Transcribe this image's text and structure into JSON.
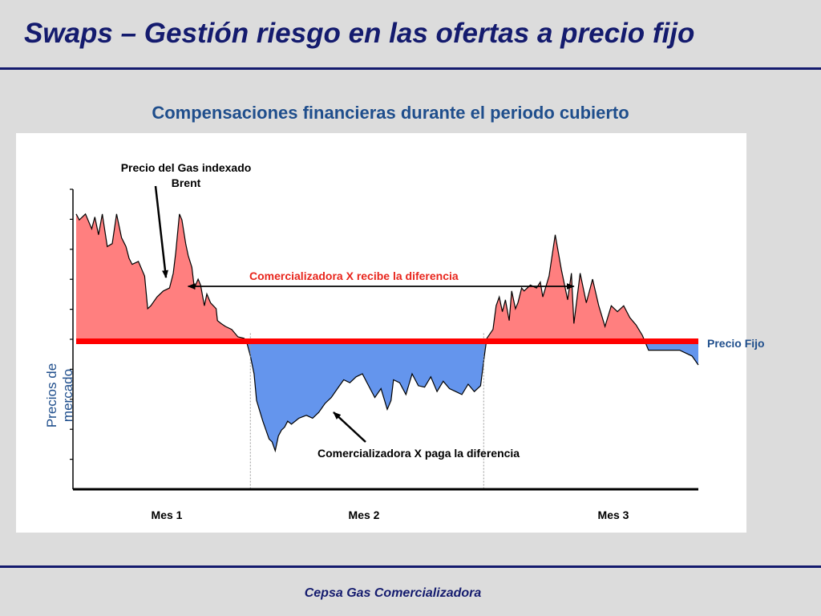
{
  "slide": {
    "title": "Swaps – Gestión riesgo en las ofertas a precio fijo",
    "footer": "Cepsa Gas Comercializadora"
  },
  "chart_data": {
    "type": "area",
    "title": "Compensaciones financieras durante el periodo cubierto",
    "ylabel": "Precios de mercado",
    "xlabel": "",
    "tick_labels": [
      "Mes 1",
      "Mes 2",
      "Mes 3"
    ],
    "fixed_price_label": "Precio Fijo",
    "fixed_price": 50,
    "ylim": [
      0,
      100
    ],
    "xlim": [
      0,
      100
    ],
    "grid": false,
    "period_boundaries": [
      28,
      65.5
    ],
    "series": [
      {
        "name": "Precio del Gas indexado Brent",
        "x": [
          0,
          0.5,
          1.5,
          2.5,
          3,
          3.6,
          4.2,
          5,
          5.8,
          6.5,
          7.3,
          8,
          8.5,
          9,
          10,
          11,
          11.5,
          12,
          13,
          14,
          15,
          15.6,
          16,
          16.6,
          17,
          17.6,
          18,
          18.6,
          19,
          19.6,
          20,
          20.6,
          21,
          21.6,
          22.5,
          22.7,
          23.3,
          24,
          25,
          26,
          27,
          27.5,
          28,
          28.6,
          29,
          30,
          31,
          31.5,
          32,
          32.5,
          33,
          33.5,
          34,
          34.6,
          35.2,
          35.8,
          36.4,
          37,
          38,
          39,
          40,
          41,
          42,
          43,
          44,
          45,
          46,
          47,
          48,
          49,
          50,
          50.6,
          51,
          52,
          53,
          54,
          55,
          56,
          57,
          58,
          59,
          60,
          61,
          62,
          63,
          64,
          65,
          65.6,
          66,
          67,
          67.5,
          68,
          68.5,
          69,
          69.6,
          70,
          70.6,
          71,
          71.6,
          72,
          73,
          74,
          74.6,
          75,
          76,
          77,
          78,
          79,
          79.6,
          80,
          81,
          82,
          83,
          84,
          85,
          86,
          87,
          88,
          89,
          90,
          91,
          92,
          93,
          94,
          95,
          96,
          97,
          98,
          99,
          100
        ],
        "y": [
          93,
          91,
          93,
          88,
          92,
          86,
          93,
          82,
          83,
          93,
          85,
          82,
          78,
          76,
          77,
          72,
          61,
          62,
          65,
          67,
          68,
          73,
          80,
          93,
          91,
          83,
          79,
          75,
          68,
          71,
          69,
          62,
          66,
          63,
          61,
          57,
          56,
          55,
          54,
          51.5,
          51,
          49,
          45,
          39,
          30,
          23,
          17,
          16,
          13,
          18,
          20,
          21,
          23,
          22,
          23,
          24,
          24.5,
          25,
          24,
          26,
          29,
          31,
          34,
          37,
          36,
          38,
          39,
          35,
          31,
          34,
          27,
          30,
          37,
          36,
          32,
          39,
          35,
          34.5,
          38,
          33,
          36.5,
          34,
          33,
          32,
          35.5,
          33,
          35,
          45,
          51,
          54,
          62,
          65,
          60,
          64,
          57,
          67,
          61,
          63,
          68,
          67,
          69,
          68,
          70,
          65,
          72,
          86,
          74,
          64,
          73,
          56,
          73,
          63,
          71,
          62,
          55,
          62,
          60,
          62,
          58,
          55.5,
          52,
          47,
          47,
          47,
          47,
          47,
          47,
          46,
          45,
          42
        ]
      }
    ],
    "annotations": [
      {
        "text": "Precio del Gas indexado Brent",
        "line1": "Precio del Gas indexado",
        "line2": "Brent"
      },
      {
        "text": "Comercializadora X recibe la diferencia"
      },
      {
        "text": "Comercializadora X paga la diferencia"
      }
    ],
    "colors": {
      "above_fill": "#ff7f7f",
      "below_fill": "#6495ed",
      "fixed_line": "#ff0000",
      "receive_text": "#e8261d",
      "title": "#1f4e8c"
    }
  }
}
